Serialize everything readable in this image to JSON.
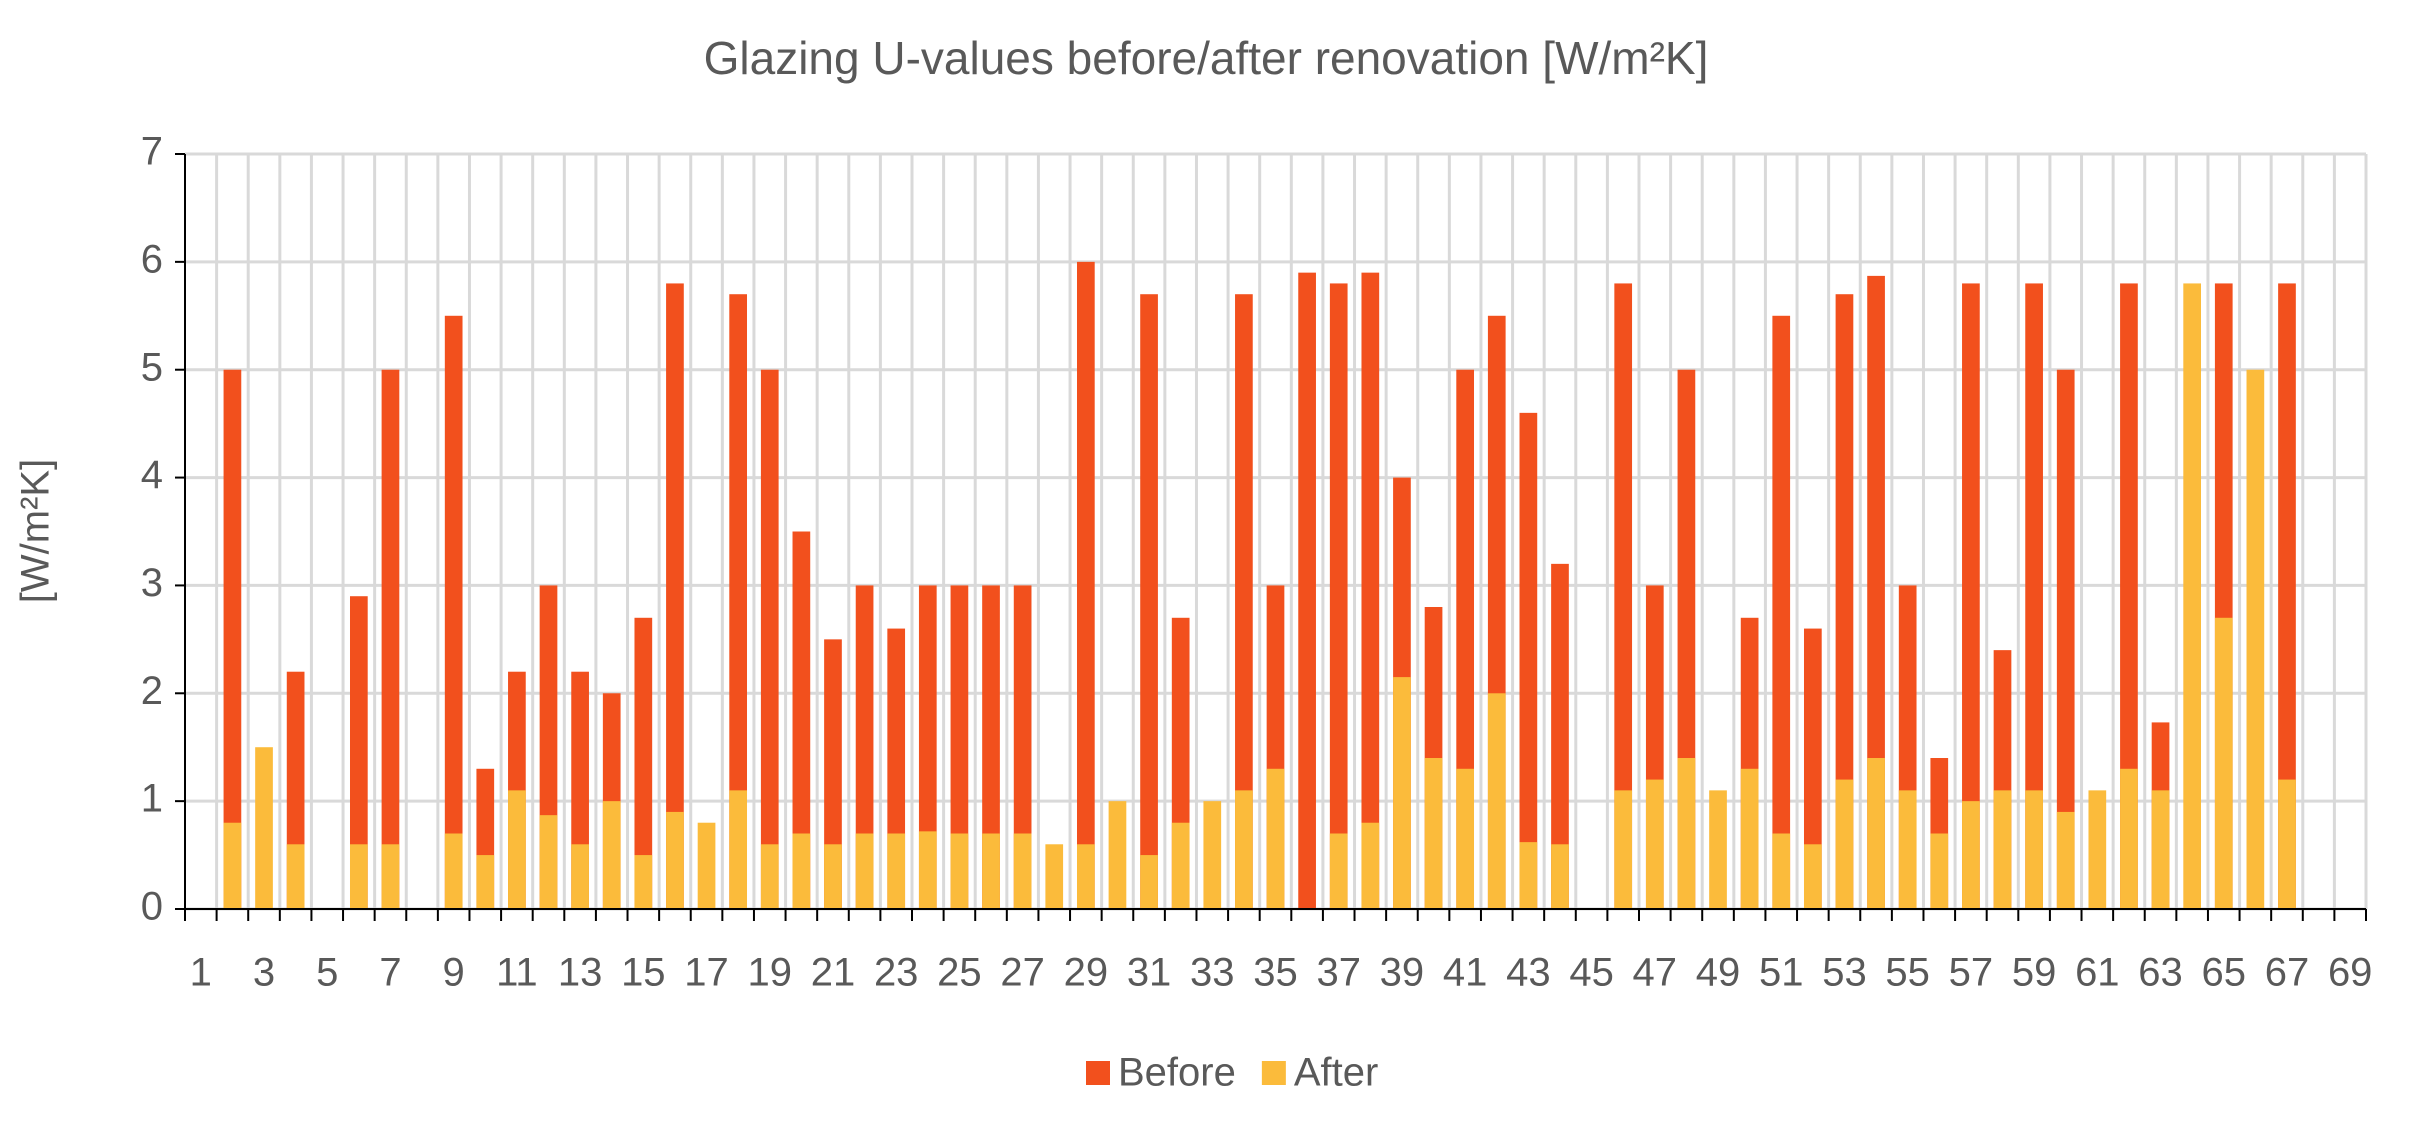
{
  "chart_data": {
    "type": "bar",
    "title": "Glazing U-values before/after renovation [W/m²K]",
    "y_label": "[W/m²K]",
    "categories": [
      1,
      null,
      3,
      null,
      5,
      null,
      7,
      null,
      9,
      null,
      11,
      null,
      13,
      null,
      15,
      null,
      17,
      null,
      19,
      null,
      21,
      null,
      23,
      null,
      25,
      null,
      27,
      null,
      29,
      null,
      31,
      null,
      33,
      null,
      35,
      null,
      37,
      null,
      39,
      null,
      41,
      null,
      43,
      null,
      45,
      null,
      47,
      null,
      49,
      null,
      51,
      null,
      53,
      null,
      55,
      null,
      57,
      null,
      59,
      null,
      61,
      null,
      63,
      null,
      65,
      null,
      67,
      null,
      69
    ],
    "series": [
      {
        "name": "Before",
        "color": "#f2501d",
        "values": [
          null,
          5,
          null,
          2.2,
          null,
          2.9,
          5,
          null,
          5.5,
          1.3,
          2.2,
          3,
          2.2,
          2,
          2.7,
          5.8,
          null,
          5.7,
          5,
          3.5,
          2.5,
          3,
          2.6,
          3,
          3,
          3,
          3,
          null,
          6,
          null,
          5.7,
          2.7,
          null,
          5.7,
          3,
          5.9,
          5.8,
          5.9,
          4,
          2.8,
          5,
          5.5,
          4.6,
          3.2,
          null,
          5.8,
          3,
          5,
          null,
          2.7,
          5.5,
          2.6,
          5.7,
          5.87,
          3,
          1.4,
          5.8,
          2.4,
          5.8,
          5,
          null,
          5.8,
          1.73,
          null,
          5.8,
          null,
          5.8,
          null,
          null
        ]
      },
      {
        "name": "After",
        "color": "#fbbb3b",
        "values": [
          null,
          0.8,
          1.5,
          0.6,
          null,
          0.6,
          0.6,
          null,
          0.7,
          0.5,
          1.1,
          0.87,
          0.6,
          1,
          0.5,
          0.9,
          0.8,
          1.1,
          0.6,
          0.7,
          0.6,
          0.7,
          0.7,
          0.72,
          0.7,
          0.7,
          0.7,
          0.6,
          0.6,
          1,
          0.5,
          0.8,
          1,
          1.1,
          1.3,
          null,
          0.7,
          0.8,
          2.15,
          1.4,
          1.3,
          2,
          0.62,
          0.6,
          null,
          1.1,
          1.2,
          1.4,
          1.1,
          1.3,
          0.7,
          0.6,
          1.2,
          1.4,
          1.1,
          0.7,
          1,
          1.1,
          1.1,
          0.9,
          1.1,
          1.3,
          1.1,
          5.8,
          2.7,
          5,
          1.2,
          null,
          null
        ]
      }
    ],
    "ylim": [
      0,
      7
    ],
    "yticks": [
      0,
      1,
      2,
      3,
      4,
      5,
      6,
      7
    ],
    "grid": true,
    "legend": "bottom"
  }
}
